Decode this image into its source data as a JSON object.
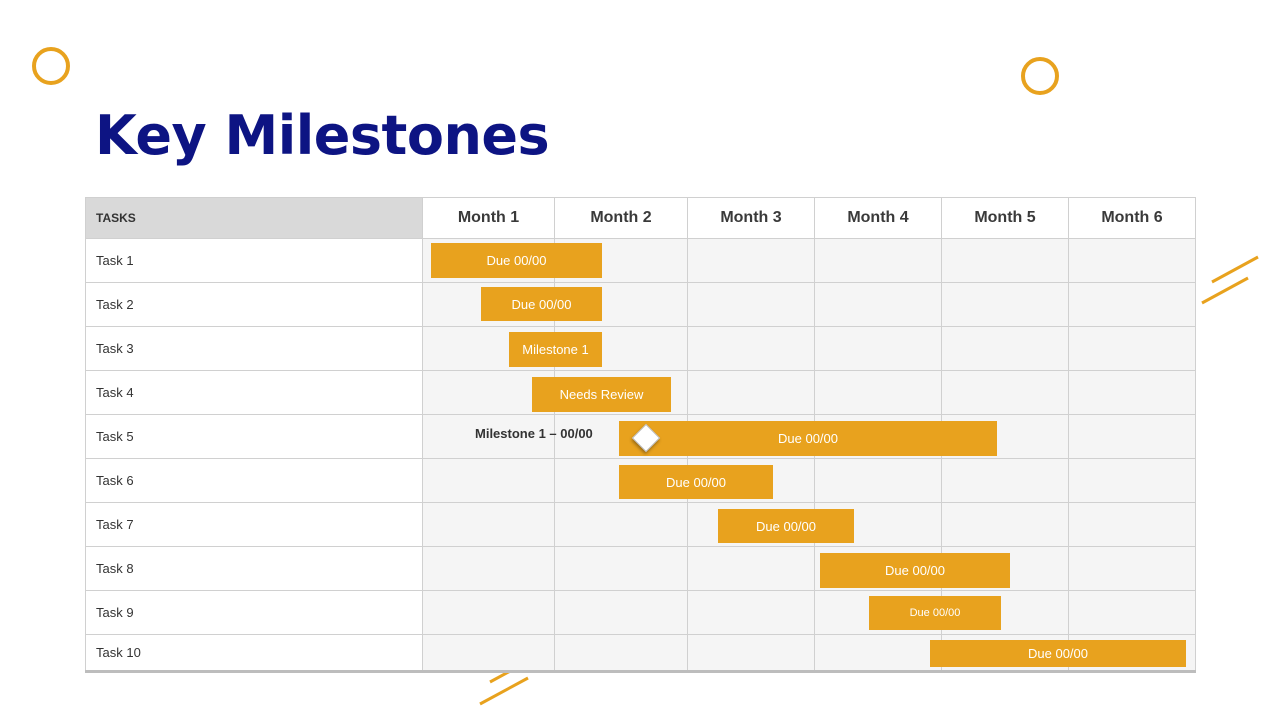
{
  "title": "Key Milestones",
  "colors": {
    "title": "#0D1483",
    "accent": "#E8A21E",
    "header_bg": "#D9D9D9",
    "cell_bg": "#F5F5F5"
  },
  "gantt": {
    "tasks_header": "TASKS",
    "months": [
      "Month 1",
      "Month 2",
      "Month 3",
      "Month 4",
      "Month 5",
      "Month 6"
    ],
    "tasks": [
      "Task 1",
      "Task 2",
      "Task 3",
      "Task 4",
      "Task 5",
      "Task 6",
      "Task 7",
      "Task 8",
      "Task 9",
      "Task 10"
    ],
    "bars": [
      {
        "label": "Due 00/00"
      },
      {
        "label": "Due 00/00"
      },
      {
        "label": "Milestone 1"
      },
      {
        "label": "Needs Review"
      },
      {
        "label": "Due 00/00"
      },
      {
        "label": "Due 00/00"
      },
      {
        "label": "Due 00/00"
      },
      {
        "label": "Due 00/00"
      },
      {
        "label": "Due 00/00"
      },
      {
        "label": "Due 00/00"
      }
    ],
    "milestone_label": "Milestone 1 – 00/00"
  }
}
